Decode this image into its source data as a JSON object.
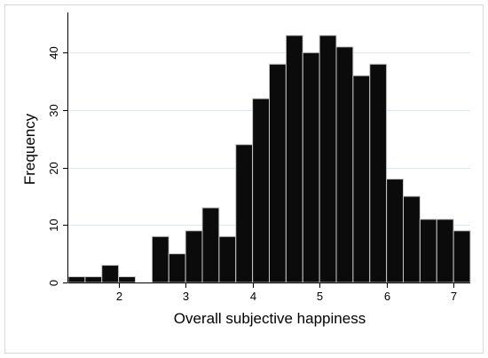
{
  "chart_data": {
    "type": "bar",
    "subtype": "histogram",
    "title": "",
    "xlabel": "Overall subjective happiness",
    "ylabel": "Frequency",
    "xlim": [
      1.25,
      7.25
    ],
    "ylim": [
      0,
      47
    ],
    "x_ticks": [
      2,
      3,
      4,
      5,
      6,
      7
    ],
    "y_ticks": [
      0,
      10,
      20,
      30,
      40
    ],
    "grid": "horizontal",
    "bar_color": "#0b0b0b",
    "bar_edge_color": "#c8c8c8",
    "bins": [
      {
        "x_start": 1.25,
        "x_end": 1.5,
        "frequency": 1
      },
      {
        "x_start": 1.5,
        "x_end": 1.75,
        "frequency": 1
      },
      {
        "x_start": 1.75,
        "x_end": 2.0,
        "frequency": 3
      },
      {
        "x_start": 2.0,
        "x_end": 2.25,
        "frequency": 1
      },
      {
        "x_start": 2.25,
        "x_end": 2.5,
        "frequency": 0
      },
      {
        "x_start": 2.5,
        "x_end": 2.75,
        "frequency": 8
      },
      {
        "x_start": 2.75,
        "x_end": 3.0,
        "frequency": 5
      },
      {
        "x_start": 3.0,
        "x_end": 3.25,
        "frequency": 9
      },
      {
        "x_start": 3.25,
        "x_end": 3.5,
        "frequency": 13
      },
      {
        "x_start": 3.5,
        "x_end": 3.75,
        "frequency": 8
      },
      {
        "x_start": 3.75,
        "x_end": 4.0,
        "frequency": 24
      },
      {
        "x_start": 4.0,
        "x_end": 4.25,
        "frequency": 32
      },
      {
        "x_start": 4.25,
        "x_end": 4.5,
        "frequency": 38
      },
      {
        "x_start": 4.5,
        "x_end": 4.75,
        "frequency": 43
      },
      {
        "x_start": 4.75,
        "x_end": 5.0,
        "frequency": 40
      },
      {
        "x_start": 5.0,
        "x_end": 5.25,
        "frequency": 43
      },
      {
        "x_start": 5.25,
        "x_end": 5.5,
        "frequency": 41
      },
      {
        "x_start": 5.5,
        "x_end": 5.75,
        "frequency": 36
      },
      {
        "x_start": 5.75,
        "x_end": 6.0,
        "frequency": 38
      },
      {
        "x_start": 6.0,
        "x_end": 6.25,
        "frequency": 18
      },
      {
        "x_start": 6.25,
        "x_end": 6.5,
        "frequency": 15
      },
      {
        "x_start": 6.5,
        "x_end": 6.75,
        "frequency": 11
      },
      {
        "x_start": 6.75,
        "x_end": 7.0,
        "frequency": 11
      },
      {
        "x_start": 7.0,
        "x_end": 7.25,
        "frequency": 9
      }
    ]
  }
}
